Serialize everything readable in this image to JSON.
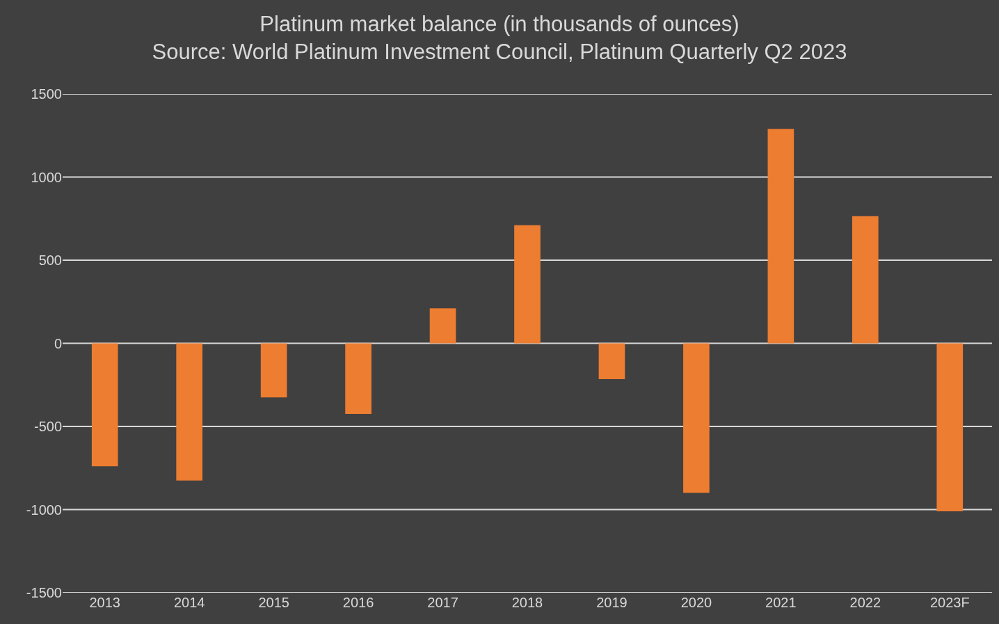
{
  "chart_data": {
    "type": "bar",
    "title": "Platinum market balance (in thousands of ounces)",
    "subtitle": "Source: World Platinum Investment Council, Platinum Quarterly Q2 2023",
    "categories": [
      "2013",
      "2014",
      "2015",
      "2016",
      "2017",
      "2018",
      "2019",
      "2020",
      "2021",
      "2022",
      "2023F"
    ],
    "values": [
      -740,
      -825,
      -325,
      -425,
      210,
      710,
      -215,
      -900,
      1290,
      765,
      -1010
    ],
    "color": "#ed7d31",
    "ylim": [
      -1500,
      1500
    ],
    "yticks": [
      -1500,
      -1000,
      -500,
      0,
      500,
      1000,
      1500
    ],
    "grid": "y"
  }
}
